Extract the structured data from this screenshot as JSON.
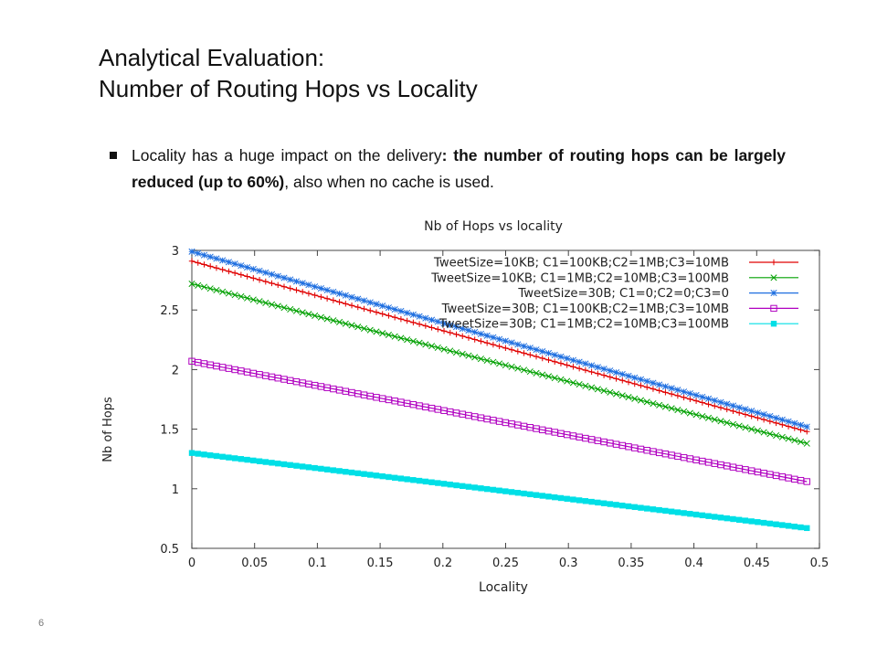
{
  "slide": {
    "title_line1": "Analytical Evaluation:",
    "title_line2": "Number of Routing Hops vs Locality",
    "bullet": {
      "part1": "Locality has a huge impact on the delivery",
      "part2": ": the number of routing hops can be largely reduced (up to 60%)",
      "part3": ", also when no cache is used."
    },
    "page_number": "6"
  },
  "chart_data": {
    "type": "line",
    "title": "Nb of Hops vs locality",
    "xlabel": "Locality",
    "ylabel": "Nb of Hops",
    "xlim": [
      0,
      0.5
    ],
    "ylim": [
      0.5,
      3
    ],
    "xticks": [
      "0",
      "0.05",
      "0.1",
      "0.15",
      "0.2",
      "0.25",
      "0.3",
      "0.35",
      "0.4",
      "0.45",
      "0.5"
    ],
    "yticks": [
      "0.5",
      "1",
      "1.5",
      "2",
      "2.5",
      "3"
    ],
    "grid": false,
    "legend_position": "top-right",
    "series": [
      {
        "name": "TweetSize=10KB; C1=100KB;C2=1MB;C3=10MB",
        "color": "#e00000",
        "marker": "plus",
        "x": [
          0,
          0.49
        ],
        "y": [
          2.91,
          1.48
        ]
      },
      {
        "name": "TweetSize=10KB; C1=1MB;C2=10MB;C3=100MB",
        "color": "#00a000",
        "marker": "cross",
        "x": [
          0,
          0.49
        ],
        "y": [
          2.72,
          1.38
        ]
      },
      {
        "name": "TweetSize=30B; C1=0;C2=0;C3=0",
        "color": "#1f6fe0",
        "marker": "star",
        "x": [
          0,
          0.49
        ],
        "y": [
          2.99,
          1.52
        ]
      },
      {
        "name": "TweetSize=30B; C1=100KB;C2=1MB;C3=10MB",
        "color": "#b000c0",
        "marker": "square",
        "x": [
          0,
          0.49
        ],
        "y": [
          2.07,
          1.06
        ]
      },
      {
        "name": "TweetSize=30B; C1=1MB;C2=10MB;C3=100MB",
        "color": "#00dfe6",
        "marker": "filled-square",
        "x": [
          0,
          0.49
        ],
        "y": [
          1.3,
          0.67
        ]
      }
    ]
  }
}
